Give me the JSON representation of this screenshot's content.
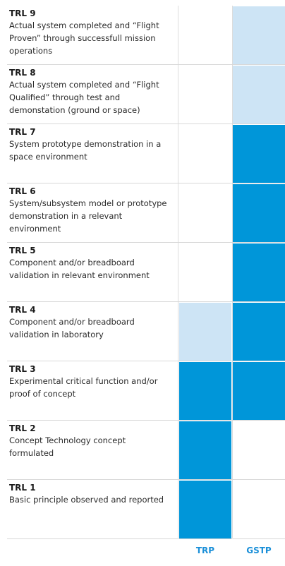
{
  "colors": {
    "full": "#0096d9",
    "partial": "#cde4f5",
    "label": "#1a8fd8"
  },
  "columns": [
    {
      "key": "trp",
      "label": "TRP"
    },
    {
      "key": "gstp",
      "label": "GSTP"
    }
  ],
  "rows": [
    {
      "level": "TRL 9",
      "description": "Actual system completed and “Flight Proven” through successfull mission operations",
      "trp": "none",
      "gstp": "partial"
    },
    {
      "level": "TRL 8",
      "description": "Actual system completed and “Flight Qualified” through test and demonstation (ground or space)",
      "trp": "none",
      "gstp": "partial"
    },
    {
      "level": "TRL 7",
      "description": "System prototype demonstration in a space environment",
      "trp": "none",
      "gstp": "full"
    },
    {
      "level": "TRL 6",
      "description": "System/subsystem model or prototype demonstration in a relevant environment",
      "trp": "none",
      "gstp": "full"
    },
    {
      "level": "TRL 5",
      "description": "Component and/or breadboard validation in relevant environment",
      "trp": "none",
      "gstp": "full"
    },
    {
      "level": "TRL 4",
      "description": "Component and/or breadboard validation in laboratory",
      "trp": "partial",
      "gstp": "full"
    },
    {
      "level": "TRL 3",
      "description": "Experimental critical function and/or proof of concept",
      "trp": "full",
      "gstp": "full"
    },
    {
      "level": "TRL 2",
      "description": "Concept Technology concept formulated",
      "trp": "full",
      "gstp": "none"
    },
    {
      "level": "TRL 1",
      "description": "Basic principle observed and reported",
      "trp": "full",
      "gstp": "none"
    }
  ]
}
